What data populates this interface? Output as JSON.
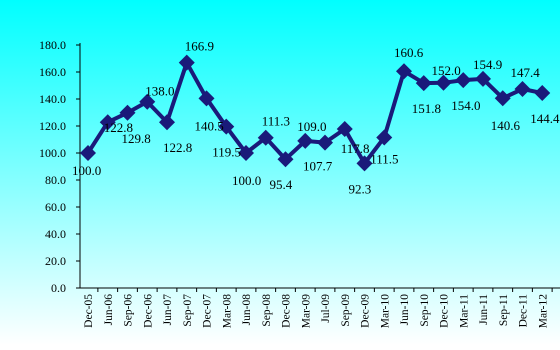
{
  "colors": {
    "bg_top": "#00ffff",
    "bg_bottom": "#ffffff",
    "series_color": "#1a1a7a",
    "axis_color": "#000000",
    "text_color": "#000000"
  },
  "chart_data": {
    "type": "line",
    "categories": [
      "Dec-05",
      "Jun-06",
      "Sep-06",
      "Dec-06",
      "Jun-07",
      "Sep-07",
      "Dec-07",
      "Mar-08",
      "Jun-08",
      "Sep-08",
      "Dec-08",
      "Mar-09",
      "Jul-09",
      "Sep-09",
      "Dec-09",
      "Mar-10",
      "Jun-10",
      "Sep-10",
      "Dec-10",
      "Mar-11",
      "Jun-11",
      "Sep-11",
      "Dec-11",
      "Mar-12"
    ],
    "series": [
      {
        "values": [
          100.0,
          122.8,
          129.8,
          138.0,
          122.8,
          166.9,
          140.5,
          119.5,
          100.0,
          111.3,
          95.4,
          109.0,
          107.7,
          117.8,
          92.3,
          111.5,
          160.6,
          151.8,
          152.0,
          154.0,
          154.9,
          140.6,
          147.4,
          144.4
        ],
        "labels": [
          "100.0",
          "122.8",
          "129.8",
          "138.0",
          "122.8",
          "166.9",
          "140.5",
          "119.5",
          "100.0",
          "111.3",
          "95.4",
          "109.0",
          "107.7",
          "117.8",
          "92.3",
          "111.5",
          "160.6",
          "151.8",
          "152.0",
          "154.0",
          "154.9",
          "140.6",
          "147.4",
          "144.4"
        ]
      }
    ],
    "yticks": [
      "0.0",
      "20.0",
      "40.0",
      "60.0",
      "80.0",
      "100.0",
      "120.0",
      "140.0",
      "160.0",
      "180.0"
    ],
    "ylim": [
      0,
      180
    ],
    "title": "",
    "xlabel": "",
    "ylabel": "",
    "legend": "none",
    "grid": false
  }
}
